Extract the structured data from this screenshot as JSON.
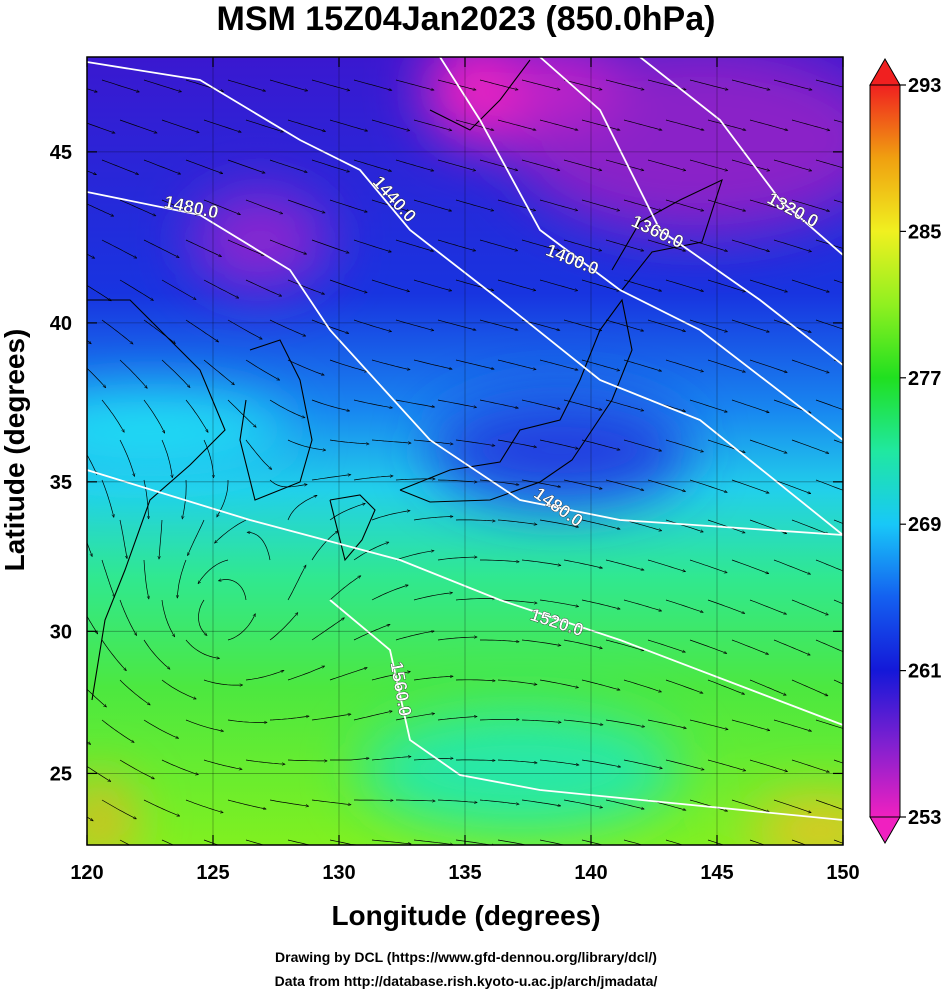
{
  "map": {
    "title": "MSM 15Z04Jan2023 (850.0hPa)",
    "xlabel": "Longitude (degrees)",
    "ylabel": "Latitude  (degrees)",
    "projection": "mercator",
    "xlim": [
      120,
      150
    ],
    "ylim": [
      22.4,
      47.6
    ],
    "xticks": [
      120,
      125,
      130,
      135,
      140,
      145,
      150
    ],
    "yticks": [
      25,
      30,
      35,
      40,
      45
    ],
    "grid": true,
    "contour_color": "#ffffff",
    "contours": [
      {
        "value": 1320,
        "label": "1320.0"
      },
      {
        "value": 1360,
        "label": "1360.0"
      },
      {
        "value": 1400,
        "label": "1400.0"
      },
      {
        "value": 1440,
        "label": "1440.0"
      },
      {
        "value": 1480,
        "label": "1480.0"
      },
      {
        "value": 1520,
        "label": "1520.0"
      },
      {
        "value": 1560,
        "label": "1560.0"
      }
    ],
    "colorbar": {
      "lim": [
        253,
        293
      ],
      "ticks": [
        253,
        261,
        269,
        277,
        285,
        293
      ],
      "colors": [
        "#f020c0",
        "#8020d0",
        "#1418d8",
        "#1460f0",
        "#18c8f8",
        "#20e8a0",
        "#20e020",
        "#90f020",
        "#f0f020",
        "#f0a010",
        "#f02020"
      ]
    },
    "credits": [
      "Drawing by DCL (https://www.gfd-dennou.org/library/dcl/)",
      "Data from http://database.rish.kyoto-u.ac.jp/arch/jmadata/"
    ]
  }
}
